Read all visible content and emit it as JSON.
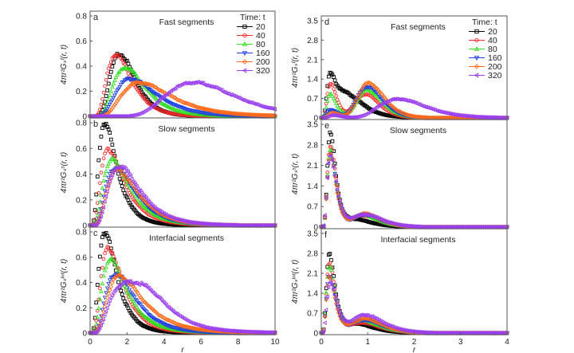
{
  "chart_data": [
    {
      "panel": "a",
      "type": "scatter",
      "title": "Fast segments",
      "ylabel": "4πr²Gₛᶠ(r, t)",
      "xlabel": "",
      "xlim": [
        0,
        10
      ],
      "ylim": [
        0,
        0.85
      ],
      "xticks": [],
      "yticks": [
        "0",
        "0.2",
        "0.4",
        "0.6",
        "0.8"
      ],
      "ytick_values": [
        0,
        0.2,
        0.4,
        0.6,
        0.8
      ],
      "legend": {
        "title": "Time: t",
        "placement": "top-right"
      },
      "series": [
        {
          "name": "20",
          "peaks": [
            {
              "x": 1.6,
              "y": 0.5,
              "w": 0.75
            }
          ]
        },
        {
          "name": "40",
          "peaks": [
            {
              "x": 1.4,
              "y": 0.49,
              "w": 0.8
            }
          ]
        },
        {
          "name": "80",
          "peaks": [
            {
              "x": 1.9,
              "y": 0.39,
              "w": 1.0
            }
          ]
        },
        {
          "name": "160",
          "peaks": [
            {
              "x": 2.2,
              "y": 0.3,
              "w": 1.3
            }
          ]
        },
        {
          "name": "200",
          "peaks": [
            {
              "x": 2.7,
              "y": 0.27,
              "w": 1.6
            }
          ]
        },
        {
          "name": "320",
          "peaks": [
            {
              "x": 5.6,
              "y": 0.27,
              "w": 1.8
            }
          ]
        }
      ]
    },
    {
      "panel": "b",
      "type": "scatter",
      "title": "Slow segments",
      "ylabel": "4πr²Gₛˢ(r, t)",
      "xlabel": "",
      "xlim": [
        0,
        10
      ],
      "ylim": [
        0,
        0.85
      ],
      "xticks": [],
      "yticks": [
        "0",
        "0.2",
        "0.4",
        "0.6",
        "0.8"
      ],
      "ytick_values": [
        0,
        0.2,
        0.4,
        0.6,
        0.8
      ],
      "series": [
        {
          "name": "20",
          "peaks": [
            {
              "x": 0.8,
              "y": 0.8,
              "w": 0.6
            }
          ]
        },
        {
          "name": "40",
          "peaks": [
            {
              "x": 1.0,
              "y": 0.59,
              "w": 0.8
            }
          ]
        },
        {
          "name": "80",
          "peaks": [
            {
              "x": 1.2,
              "y": 0.51,
              "w": 0.9
            }
          ]
        },
        {
          "name": "160",
          "peaks": [
            {
              "x": 1.4,
              "y": 0.45,
              "w": 1.0
            }
          ]
        },
        {
          "name": "200",
          "peaks": [
            {
              "x": 1.5,
              "y": 0.43,
              "w": 1.05
            }
          ]
        },
        {
          "name": "320",
          "peaks": [
            {
              "x": 1.6,
              "y": 0.46,
              "w": 1.05
            }
          ]
        }
      ]
    },
    {
      "panel": "c",
      "type": "scatter",
      "title": "Interfacial segments",
      "ylabel": "4πr²Gₛᴵⁿᵗ(r, t)",
      "xlabel": "r",
      "xlim": [
        0,
        10
      ],
      "ylim": [
        0,
        0.85
      ],
      "xticks": [
        "0",
        "2",
        "4",
        "6",
        "8",
        "10"
      ],
      "xtick_values": [
        0,
        2,
        4,
        6,
        8,
        10
      ],
      "yticks": [
        "0",
        "0.2",
        "0.4",
        "0.6",
        "0.8"
      ],
      "ytick_values": [
        0,
        0.2,
        0.4,
        0.6,
        0.8
      ],
      "series": [
        {
          "name": "20",
          "peaks": [
            {
              "x": 0.8,
              "y": 0.8,
              "w": 0.6
            }
          ]
        },
        {
          "name": "40",
          "peaks": [
            {
              "x": 1.0,
              "y": 0.67,
              "w": 0.75
            }
          ]
        },
        {
          "name": "80",
          "peaks": [
            {
              "x": 1.1,
              "y": 0.58,
              "w": 0.85
            }
          ]
        },
        {
          "name": "160",
          "peaks": [
            {
              "x": 1.4,
              "y": 0.47,
              "w": 1.0
            }
          ]
        },
        {
          "name": "200",
          "peaks": [
            {
              "x": 1.6,
              "y": 0.45,
              "w": 1.2
            }
          ]
        },
        {
          "name": "320",
          "peaks": [
            {
              "x": 1.8,
              "y": 0.38,
              "w": 1.4
            },
            {
              "x": 3.3,
              "y": 0.12,
              "w": 0.8
            }
          ]
        }
      ]
    },
    {
      "panel": "d",
      "type": "scatter",
      "title": "Fast segments",
      "ylabel": "4πr²Gₛᶠ(r, t)",
      "xlabel": "",
      "xlim": [
        0,
        4
      ],
      "ylim": [
        0,
        3.5
      ],
      "xticks": [],
      "yticks": [
        "0",
        "0.7",
        "1.4",
        "2.1",
        "2.8",
        "3.5"
      ],
      "ytick_values": [
        0,
        0.7,
        1.4,
        2.1,
        2.8,
        3.5
      ],
      "legend": {
        "title": "Time: t",
        "placement": "top-right"
      },
      "series": [
        {
          "name": "20",
          "peaks": [
            {
              "x": 0.2,
              "y": 1.62,
              "w": 0.12
            },
            {
              "x": 0.6,
              "y": 0.75,
              "w": 0.3
            }
          ]
        },
        {
          "name": "40",
          "peaks": [
            {
              "x": 0.2,
              "y": 1.25,
              "w": 0.12
            },
            {
              "x": 0.95,
              "y": 0.85,
              "w": 0.2
            }
          ]
        },
        {
          "name": "80",
          "peaks": [
            {
              "x": 0.2,
              "y": 0.85,
              "w": 0.12
            },
            {
              "x": 1.0,
              "y": 1.0,
              "w": 0.2
            }
          ]
        },
        {
          "name": "160",
          "peaks": [
            {
              "x": 0.2,
              "y": 0.3,
              "w": 0.15
            },
            {
              "x": 1.0,
              "y": 1.12,
              "w": 0.22
            }
          ]
        },
        {
          "name": "200",
          "peaks": [
            {
              "x": 0.25,
              "y": 0.18,
              "w": 0.15
            },
            {
              "x": 1.03,
              "y": 1.25,
              "w": 0.22
            }
          ]
        },
        {
          "name": "320",
          "peaks": [
            {
              "x": 0.25,
              "y": 0.1,
              "w": 0.15
            },
            {
              "x": 1.65,
              "y": 0.68,
              "w": 0.45
            }
          ]
        }
      ]
    },
    {
      "panel": "e",
      "type": "scatter",
      "title": "Slow segments",
      "ylabel": "4πr²Gₛˢ(r, t)",
      "xlabel": "",
      "xlim": [
        0,
        4
      ],
      "ylim": [
        0,
        3.5
      ],
      "xticks": [],
      "yticks": [
        "0",
        "0.7",
        "1.4",
        "2.1",
        "2.8",
        "3.5"
      ],
      "ytick_values": [
        0,
        0.7,
        1.4,
        2.1,
        2.8,
        3.5
      ],
      "series": [
        {
          "name": "20",
          "peaks": [
            {
              "x": 0.2,
              "y": 3.25,
              "w": 0.1
            },
            {
              "x": 0.75,
              "y": 0.25,
              "w": 0.3
            }
          ]
        },
        {
          "name": "40",
          "peaks": [
            {
              "x": 0.2,
              "y": 2.8,
              "w": 0.11
            },
            {
              "x": 0.9,
              "y": 0.38,
              "w": 0.25
            }
          ]
        },
        {
          "name": "80",
          "peaks": [
            {
              "x": 0.2,
              "y": 2.6,
              "w": 0.11
            },
            {
              "x": 0.9,
              "y": 0.4,
              "w": 0.25
            }
          ]
        },
        {
          "name": "160",
          "peaks": [
            {
              "x": 0.2,
              "y": 2.55,
              "w": 0.11
            },
            {
              "x": 0.95,
              "y": 0.42,
              "w": 0.25
            }
          ]
        },
        {
          "name": "200",
          "peaks": [
            {
              "x": 0.2,
              "y": 2.5,
              "w": 0.11
            },
            {
              "x": 0.95,
              "y": 0.45,
              "w": 0.25
            }
          ]
        },
        {
          "name": "320",
          "peaks": [
            {
              "x": 0.2,
              "y": 2.45,
              "w": 0.12
            },
            {
              "x": 0.95,
              "y": 0.42,
              "w": 0.28
            }
          ]
        }
      ]
    },
    {
      "panel": "f",
      "type": "scatter",
      "title": "Interfacial segments",
      "ylabel": "4πr²Gₛᴵⁿᵗ(r, t)",
      "xlabel": "r",
      "xlim": [
        0,
        4
      ],
      "ylim": [
        0,
        3.5
      ],
      "xticks": [
        "0",
        "1",
        "2",
        "3",
        "4"
      ],
      "xtick_values": [
        0,
        1,
        2,
        3,
        4
      ],
      "yticks": [
        "0",
        "0.7",
        "1.4",
        "2.1",
        "2.8",
        "3.5"
      ],
      "ytick_values": [
        0,
        0.7,
        1.4,
        2.1,
        2.8,
        3.5
      ],
      "series": [
        {
          "name": "20",
          "peaks": [
            {
              "x": 0.18,
              "y": 2.78,
              "w": 0.11
            },
            {
              "x": 0.8,
              "y": 0.3,
              "w": 0.3
            }
          ]
        },
        {
          "name": "40",
          "peaks": [
            {
              "x": 0.18,
              "y": 2.5,
              "w": 0.11
            },
            {
              "x": 0.9,
              "y": 0.35,
              "w": 0.3
            }
          ]
        },
        {
          "name": "80",
          "peaks": [
            {
              "x": 0.18,
              "y": 2.3,
              "w": 0.12
            },
            {
              "x": 0.9,
              "y": 0.42,
              "w": 0.3
            }
          ]
        },
        {
          "name": "160",
          "peaks": [
            {
              "x": 0.18,
              "y": 2.05,
              "w": 0.12
            },
            {
              "x": 0.95,
              "y": 0.45,
              "w": 0.3
            }
          ]
        },
        {
          "name": "200",
          "peaks": [
            {
              "x": 0.18,
              "y": 1.95,
              "w": 0.12
            },
            {
              "x": 0.95,
              "y": 0.5,
              "w": 0.3
            }
          ]
        },
        {
          "name": "320",
          "peaks": [
            {
              "x": 0.2,
              "y": 1.8,
              "w": 0.13
            },
            {
              "x": 0.95,
              "y": 0.62,
              "w": 0.32
            }
          ]
        }
      ]
    }
  ],
  "legend": {
    "title": "Time: t",
    "entries": [
      {
        "label": "20",
        "color": "#000000",
        "marker": "square"
      },
      {
        "label": "40",
        "color": "#ff2a2a",
        "marker": "circle"
      },
      {
        "label": "80",
        "color": "#33dd22",
        "marker": "triangle-up"
      },
      {
        "label": "160",
        "color": "#1f3fe0",
        "marker": "triangle-down"
      },
      {
        "label": "200",
        "color": "#ff6a1a",
        "marker": "diamond"
      },
      {
        "label": "320",
        "color": "#9a3ff0",
        "marker": "triangle-left"
      }
    ]
  }
}
